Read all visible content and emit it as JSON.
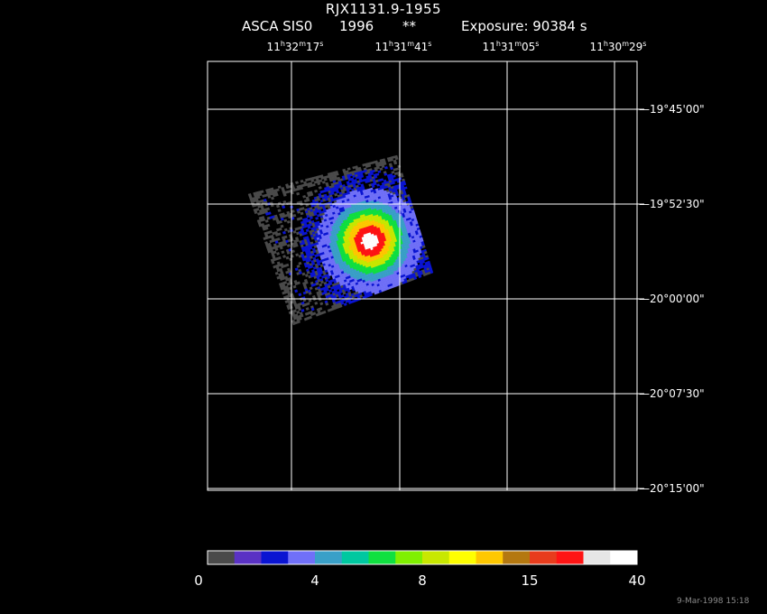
{
  "header": {
    "object_name": "RJX1131.9-1955",
    "instrument": "ASCA SIS0",
    "year": "1996",
    "flag": "**",
    "exposure": "Exposure: 90384 s"
  },
  "chart_data": {
    "type": "heatmap",
    "ra_ticks": [
      {
        "h": "11",
        "m": "32",
        "s": "17"
      },
      {
        "h": "11",
        "m": "31",
        "s": "41"
      },
      {
        "h": "11",
        "m": "31",
        "s": "05"
      },
      {
        "h": "11",
        "m": "30",
        "s": "29"
      }
    ],
    "dec_ticks": [
      "19°45'00\"",
      "19°52'30\"",
      "20°00'00\"",
      "20°07'30\"",
      "20°15'00\""
    ],
    "grid": true,
    "colorbar": {
      "colors": [
        "#4a4a4a",
        "#5a32c4",
        "#0a14d2",
        "#7070f8",
        "#3aa0c8",
        "#00c8a0",
        "#10e040",
        "#80f000",
        "#c8e800",
        "#ffff00",
        "#ffc800",
        "#b47810",
        "#e83c1c",
        "#ff1414",
        "#e6e6e6",
        "#ffffff"
      ],
      "tick_labels": [
        "0",
        "4",
        "8",
        "15",
        "40"
      ]
    },
    "source_colors": [
      "#4a4a4a",
      "#0a14d2",
      "#7070f8",
      "#3aa0c8",
      "#10e040",
      "#c8e800",
      "#ffc800",
      "#ff1414",
      "#ffffff"
    ]
  },
  "footer": {
    "timestamp": "9-Mar-1998 15:18"
  }
}
